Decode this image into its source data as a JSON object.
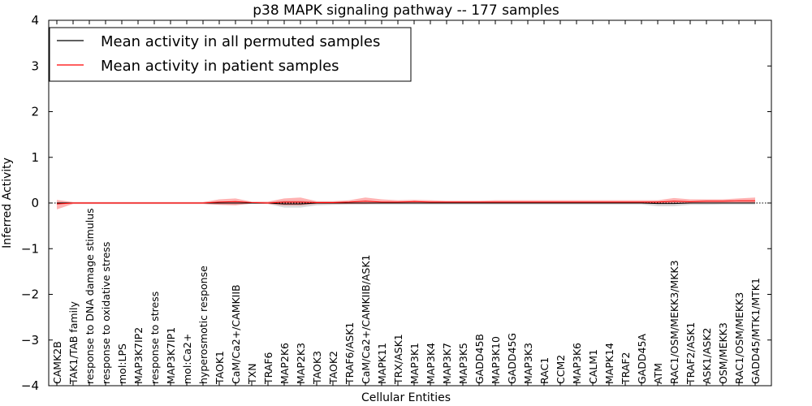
{
  "chart_data": {
    "type": "line",
    "title": "p38 MAPK signaling pathway -- 177 samples",
    "xlabel": "Cellular Entities",
    "ylabel": "Inferred Activity",
    "ylim": [
      -4,
      4
    ],
    "yticks": [
      -4,
      -3,
      -2,
      -1,
      0,
      1,
      2,
      3,
      4
    ],
    "ytick_labels": [
      "−4",
      "−3",
      "−2",
      "−1",
      "0",
      "1",
      "2",
      "3",
      "4"
    ],
    "legend": {
      "location": "top-left"
    },
    "categories": [
      "CAMK2B",
      "TAK1/TAB family",
      "response to DNA damage stimulus",
      "response to oxidative stress",
      "mol:LPS",
      "MAP3K7IP2",
      "response to stress",
      "MAP3K7IP1",
      "mol:Ca2+",
      "hyperosmotic response",
      "TAOK1",
      "CaM/Ca2+/CAMKIIB",
      "TXN",
      "TRAF6",
      "MAP2K6",
      "MAP2K3",
      "TAOK3",
      "TAOK2",
      "TRAF6/ASK1",
      "CaM/Ca2+/CAMKIIB/ASK1",
      "MAPK11",
      "TRX/ASK1",
      "MAP3K1",
      "MAP3K4",
      "MAP3K7",
      "MAP3K5",
      "GADD45B",
      "MAP3K10",
      "GADD45G",
      "MAP3K3",
      "RAC1",
      "CCM2",
      "MAP3K6",
      "CALM1",
      "MAPK14",
      "TRAF2",
      "GADD45A",
      "ATM",
      "RAC1/OSM/MEKK3/MKK3",
      "TRAF2/ASK1",
      "ASK1/ASK2",
      "OSM/MEKK3",
      "RAC1/OSM/MEKK3",
      "GADD45/MTK1/MTK1"
    ],
    "series": [
      {
        "name": "Mean activity in all permuted samples",
        "color": "#000000",
        "values": [
          0.0,
          0.0,
          0.0,
          0.0,
          0.0,
          0.0,
          0.0,
          0.0,
          0.0,
          0.0,
          0.0,
          0.0,
          0.0,
          0.0,
          -0.02,
          -0.02,
          0.0,
          0.0,
          0.0,
          0.0,
          0.0,
          0.0,
          0.0,
          0.0,
          0.0,
          0.0,
          0.0,
          0.0,
          0.0,
          0.0,
          0.0,
          0.0,
          0.0,
          0.0,
          0.0,
          0.0,
          0.0,
          -0.01,
          -0.01,
          0.0,
          0.0,
          0.0,
          0.0,
          0.0
        ],
        "lower": [
          -0.02,
          -0.02,
          -0.02,
          -0.02,
          -0.02,
          -0.02,
          -0.02,
          -0.02,
          -0.02,
          -0.02,
          -0.03,
          -0.03,
          -0.02,
          -0.02,
          -0.1,
          -0.1,
          -0.05,
          -0.04,
          -0.03,
          -0.03,
          -0.03,
          -0.03,
          -0.03,
          -0.03,
          -0.03,
          -0.03,
          -0.03,
          -0.03,
          -0.03,
          -0.03,
          -0.03,
          -0.03,
          -0.03,
          -0.03,
          -0.03,
          -0.03,
          -0.03,
          -0.07,
          -0.07,
          -0.04,
          -0.04,
          -0.03,
          -0.03,
          -0.03
        ],
        "upper": [
          0.02,
          0.02,
          0.02,
          0.02,
          0.02,
          0.02,
          0.02,
          0.02,
          0.02,
          0.02,
          0.03,
          0.03,
          0.02,
          0.02,
          0.05,
          0.05,
          0.03,
          0.03,
          0.03,
          0.03,
          0.03,
          0.03,
          0.03,
          0.03,
          0.03,
          0.03,
          0.03,
          0.03,
          0.03,
          0.03,
          0.03,
          0.03,
          0.03,
          0.03,
          0.03,
          0.03,
          0.03,
          0.04,
          0.04,
          0.03,
          0.03,
          0.03,
          0.03,
          0.03
        ]
      },
      {
        "name": "Mean activity in patient samples",
        "color": "#ff0000",
        "values": [
          -0.02,
          0.0,
          0.0,
          0.0,
          0.0,
          0.0,
          0.0,
          0.0,
          0.0,
          0.0,
          0.02,
          0.03,
          0.01,
          0.0,
          0.02,
          0.02,
          0.01,
          0.01,
          0.02,
          0.04,
          0.02,
          0.02,
          0.03,
          0.02,
          0.02,
          0.02,
          0.02,
          0.02,
          0.02,
          0.02,
          0.02,
          0.02,
          0.02,
          0.02,
          0.02,
          0.02,
          0.02,
          0.02,
          0.04,
          0.03,
          0.04,
          0.04,
          0.05,
          0.05
        ],
        "lower": [
          -0.14,
          -0.02,
          -0.02,
          -0.02,
          -0.02,
          -0.02,
          -0.02,
          -0.02,
          -0.02,
          -0.02,
          -0.04,
          -0.05,
          -0.01,
          -0.02,
          -0.05,
          -0.05,
          -0.02,
          -0.02,
          -0.02,
          -0.02,
          -0.01,
          -0.01,
          -0.01,
          -0.01,
          -0.01,
          -0.01,
          -0.01,
          -0.01,
          -0.01,
          -0.01,
          -0.01,
          -0.01,
          -0.01,
          -0.01,
          -0.01,
          -0.01,
          -0.01,
          -0.01,
          -0.01,
          -0.01,
          0.0,
          0.01,
          0.01,
          0.01
        ],
        "upper": [
          0.07,
          0.02,
          0.02,
          0.02,
          0.02,
          0.02,
          0.02,
          0.02,
          0.02,
          0.02,
          0.08,
          0.1,
          0.03,
          0.03,
          0.1,
          0.12,
          0.04,
          0.04,
          0.06,
          0.12,
          0.08,
          0.06,
          0.07,
          0.06,
          0.05,
          0.05,
          0.05,
          0.06,
          0.06,
          0.06,
          0.06,
          0.06,
          0.06,
          0.06,
          0.06,
          0.06,
          0.06,
          0.06,
          0.11,
          0.08,
          0.08,
          0.08,
          0.1,
          0.12
        ]
      }
    ]
  }
}
